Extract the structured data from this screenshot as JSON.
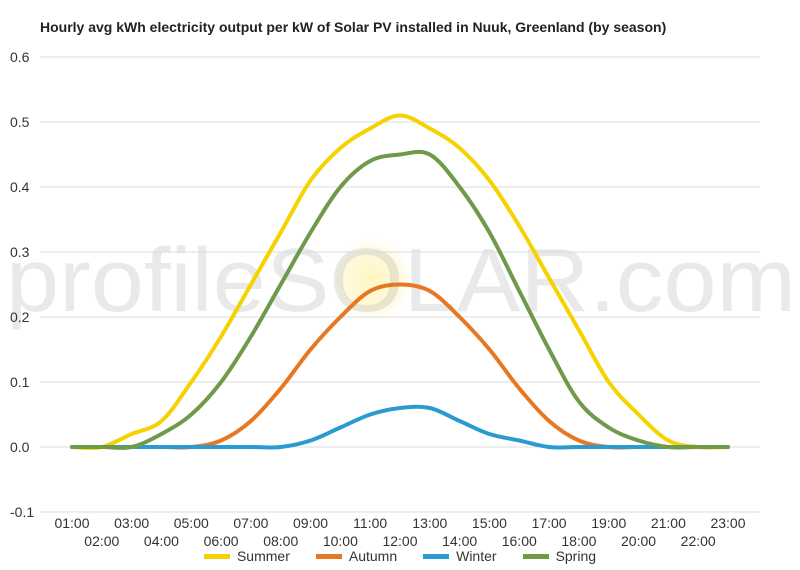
{
  "chart_data": {
    "type": "line",
    "title": "Hourly avg kWh electricity output per kW of Solar PV installed in Nuuk, Greenland (by season)",
    "xlabel": "",
    "ylabel": "",
    "categories": [
      "01:00",
      "02:00",
      "03:00",
      "04:00",
      "05:00",
      "06:00",
      "07:00",
      "08:00",
      "09:00",
      "10:00",
      "11:00",
      "12:00",
      "13:00",
      "14:00",
      "15:00",
      "16:00",
      "17:00",
      "18:00",
      "19:00",
      "20:00",
      "21:00",
      "22:00",
      "23:00"
    ],
    "ylim": [
      -0.1,
      0.6
    ],
    "yticks": [
      "-0.1",
      "0.0",
      "0.1",
      "0.2",
      "0.3",
      "0.4",
      "0.5",
      "0.6"
    ],
    "grid": true,
    "legend_position": "bottom",
    "watermark": "profileSOLAR.com",
    "series": [
      {
        "name": "Summer",
        "color": "#f5d200",
        "values": [
          0.0,
          0.0,
          0.02,
          0.04,
          0.1,
          0.17,
          0.25,
          0.33,
          0.41,
          0.46,
          0.49,
          0.51,
          0.49,
          0.46,
          0.41,
          0.34,
          0.26,
          0.18,
          0.1,
          0.05,
          0.01,
          0.0,
          0.0
        ]
      },
      {
        "name": "Autumn",
        "color": "#e87722",
        "values": [
          0.0,
          0.0,
          0.0,
          0.0,
          0.0,
          0.01,
          0.04,
          0.09,
          0.15,
          0.2,
          0.24,
          0.25,
          0.24,
          0.2,
          0.15,
          0.09,
          0.04,
          0.01,
          0.0,
          0.0,
          0.0,
          0.0,
          0.0
        ]
      },
      {
        "name": "Winter",
        "color": "#2a9bd0",
        "values": [
          0.0,
          0.0,
          0.0,
          0.0,
          0.0,
          0.0,
          0.0,
          0.0,
          0.01,
          0.03,
          0.05,
          0.06,
          0.06,
          0.04,
          0.02,
          0.01,
          0.0,
          0.0,
          0.0,
          0.0,
          0.0,
          0.0,
          0.0
        ]
      },
      {
        "name": "Spring",
        "color": "#6e9a4a",
        "values": [
          0.0,
          0.0,
          0.0,
          0.02,
          0.05,
          0.1,
          0.17,
          0.25,
          0.33,
          0.4,
          0.44,
          0.45,
          0.45,
          0.4,
          0.33,
          0.24,
          0.15,
          0.07,
          0.03,
          0.01,
          0.0,
          0.0,
          0.0
        ]
      }
    ]
  }
}
